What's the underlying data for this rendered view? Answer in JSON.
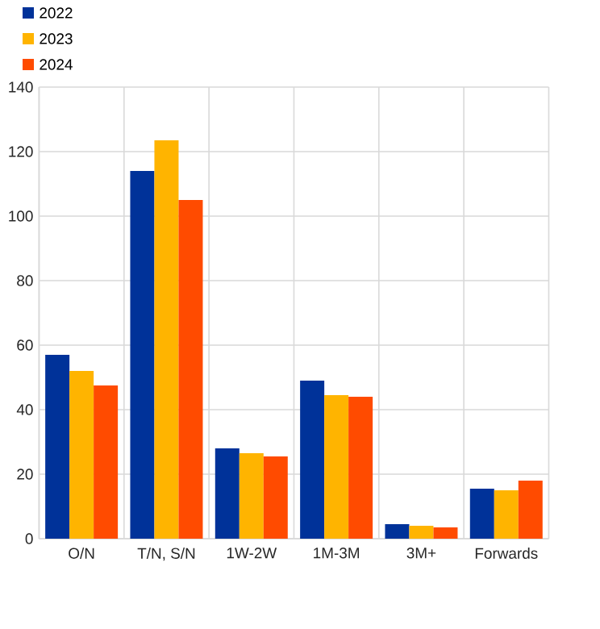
{
  "chart_data": {
    "type": "bar",
    "categories": [
      "O/N",
      "T/N, S/N",
      "1W-2W",
      "1M-3M",
      "3M+",
      "Forwards"
    ],
    "series": [
      {
        "name": "2022",
        "color": "#003299",
        "values": [
          57,
          114,
          28,
          49,
          4.5,
          15.5
        ]
      },
      {
        "name": "2023",
        "color": "#ffb400",
        "values": [
          52,
          123.5,
          26.5,
          44.5,
          4,
          15
        ]
      },
      {
        "name": "2024",
        "color": "#ff4b00",
        "values": [
          47.5,
          105,
          25.5,
          44,
          3.5,
          18
        ]
      }
    ],
    "ylim": [
      0,
      140
    ],
    "yticks": [
      0,
      20,
      40,
      60,
      80,
      100,
      120,
      140
    ],
    "grid": true,
    "legend": "top left"
  }
}
